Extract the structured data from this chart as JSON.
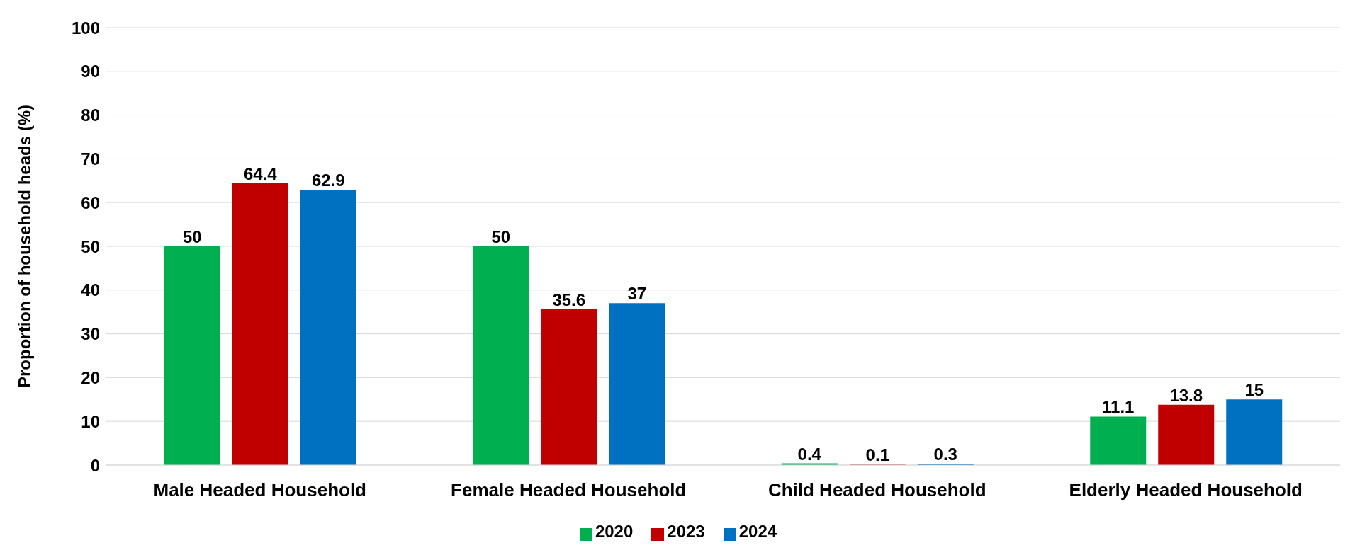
{
  "chart_data": {
    "type": "bar",
    "ylabel": "Proportion of household heads (%)",
    "categories": [
      "Male Headed Household",
      "Female Headed Household",
      "Child Headed Household",
      "Elderly Headed Household"
    ],
    "series": [
      {
        "name": "2020",
        "color": "#00b050",
        "values": [
          50,
          50,
          0.4,
          11.1
        ]
      },
      {
        "name": "2023",
        "color": "#c00000",
        "values": [
          64.4,
          35.6,
          0.1,
          13.8
        ]
      },
      {
        "name": "2024",
        "color": "#0070c0",
        "values": [
          62.9,
          37,
          0.3,
          15
        ]
      }
    ],
    "ylim": [
      0,
      100
    ],
    "yticks": [
      0,
      10,
      20,
      30,
      40,
      50,
      60,
      70,
      80,
      90,
      100
    ],
    "grid": "y",
    "legend": "bottom",
    "data_labels": true
  }
}
